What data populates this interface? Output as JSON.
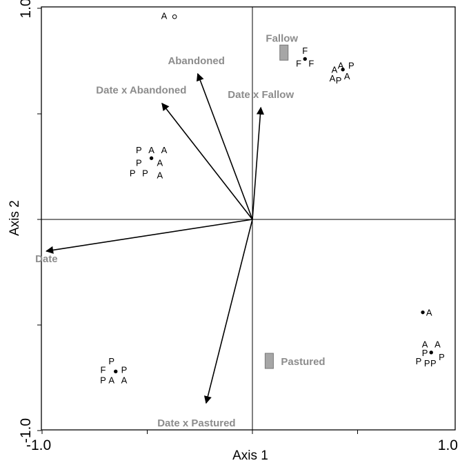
{
  "chart_data": {
    "type": "scatter",
    "title": "",
    "xlabel": "Axis 1",
    "ylabel": "Axis 2",
    "xlim": [
      -1.0,
      1.0
    ],
    "ylim": [
      -1.0,
      1.0
    ],
    "xticks": [
      -1.0,
      -0.5,
      0,
      0.5,
      1.0
    ],
    "yticks": [
      -1.0,
      -0.5,
      0,
      0.5,
      1.0
    ],
    "x_tick_labels": [
      {
        "value": -1.0,
        "label": "-1.0"
      },
      {
        "value": 1.0,
        "label": "1.0"
      }
    ],
    "y_tick_labels": [
      {
        "value": -1.0,
        "label": "-1.0"
      },
      {
        "value": 1.0,
        "label": "1.0"
      }
    ],
    "grid": false,
    "vectors": [
      {
        "name": "Abandoned",
        "x": -0.26,
        "y": 0.69
      },
      {
        "name": "Date x Abandoned",
        "x": -0.43,
        "y": 0.55
      },
      {
        "name": "Date x Fallow",
        "x": 0.04,
        "y": 0.53
      },
      {
        "name": "Date",
        "x": -0.98,
        "y": -0.15
      },
      {
        "name": "Date x Pastured",
        "x": -0.22,
        "y": -0.87
      }
    ],
    "factor_centroids": [
      {
        "name": "Fallow",
        "x": 0.15,
        "y": 0.79
      },
      {
        "name": "Pastured",
        "x": 0.08,
        "y": -0.67
      }
    ],
    "centroids": [
      {
        "x": -0.37,
        "y": 0.96,
        "hollow": true,
        "labels": [
          {
            "t": "A",
            "dx": -0.05,
            "dy": 0.005
          }
        ]
      },
      {
        "x": 0.25,
        "y": 0.76,
        "hollow": false,
        "labels": [
          {
            "t": "F",
            "dx": 0.0,
            "dy": 0.04
          },
          {
            "t": "F",
            "dx": -0.03,
            "dy": -0.02
          },
          {
            "t": "F",
            "dx": 0.03,
            "dy": -0.02
          }
        ]
      },
      {
        "x": 0.43,
        "y": 0.71,
        "hollow": false,
        "labels": [
          {
            "t": "A",
            "dx": -0.04,
            "dy": 0.0
          },
          {
            "t": "A",
            "dx": -0.01,
            "dy": 0.02
          },
          {
            "t": "P",
            "dx": 0.04,
            "dy": 0.02
          },
          {
            "t": "A",
            "dx": -0.05,
            "dy": -0.04
          },
          {
            "t": "P",
            "dx": -0.02,
            "dy": -0.05
          },
          {
            "t": "A",
            "dx": 0.02,
            "dy": -0.03
          }
        ]
      },
      {
        "x": -0.48,
        "y": 0.29,
        "hollow": false,
        "labels": [
          {
            "t": "P",
            "dx": -0.06,
            "dy": 0.04
          },
          {
            "t": "A",
            "dx": 0.0,
            "dy": 0.04
          },
          {
            "t": "A",
            "dx": 0.06,
            "dy": 0.04
          },
          {
            "t": "P",
            "dx": -0.06,
            "dy": -0.02
          },
          {
            "t": "A",
            "dx": 0.04,
            "dy": -0.02
          },
          {
            "t": "P",
            "dx": -0.09,
            "dy": -0.07
          },
          {
            "t": "P",
            "dx": -0.03,
            "dy": -0.07
          },
          {
            "t": "A",
            "dx": 0.04,
            "dy": -0.08
          }
        ]
      },
      {
        "x": 0.81,
        "y": -0.44,
        "hollow": false,
        "labels": [
          {
            "t": "A",
            "dx": 0.03,
            "dy": 0.0
          }
        ]
      },
      {
        "x": 0.85,
        "y": -0.63,
        "hollow": false,
        "labels": [
          {
            "t": "A",
            "dx": -0.03,
            "dy": 0.04
          },
          {
            "t": "A",
            "dx": 0.03,
            "dy": 0.04
          },
          {
            "t": "P",
            "dx": -0.03,
            "dy": 0.0
          },
          {
            "t": "P",
            "dx": 0.05,
            "dy": -0.02
          },
          {
            "t": "P",
            "dx": -0.06,
            "dy": -0.04
          },
          {
            "t": "P",
            "dx": -0.02,
            "dy": -0.05
          },
          {
            "t": "P",
            "dx": 0.01,
            "dy": -0.05
          }
        ]
      },
      {
        "x": -0.65,
        "y": -0.72,
        "hollow": false,
        "labels": [
          {
            "t": "P",
            "dx": -0.02,
            "dy": 0.05
          },
          {
            "t": "F",
            "dx": -0.06,
            "dy": 0.01
          },
          {
            "t": "P",
            "dx": 0.04,
            "dy": 0.01
          },
          {
            "t": "P",
            "dx": -0.06,
            "dy": -0.04
          },
          {
            "t": "A",
            "dx": -0.02,
            "dy": -0.04
          },
          {
            "t": "A",
            "dx": 0.04,
            "dy": -0.04
          }
        ]
      }
    ]
  }
}
